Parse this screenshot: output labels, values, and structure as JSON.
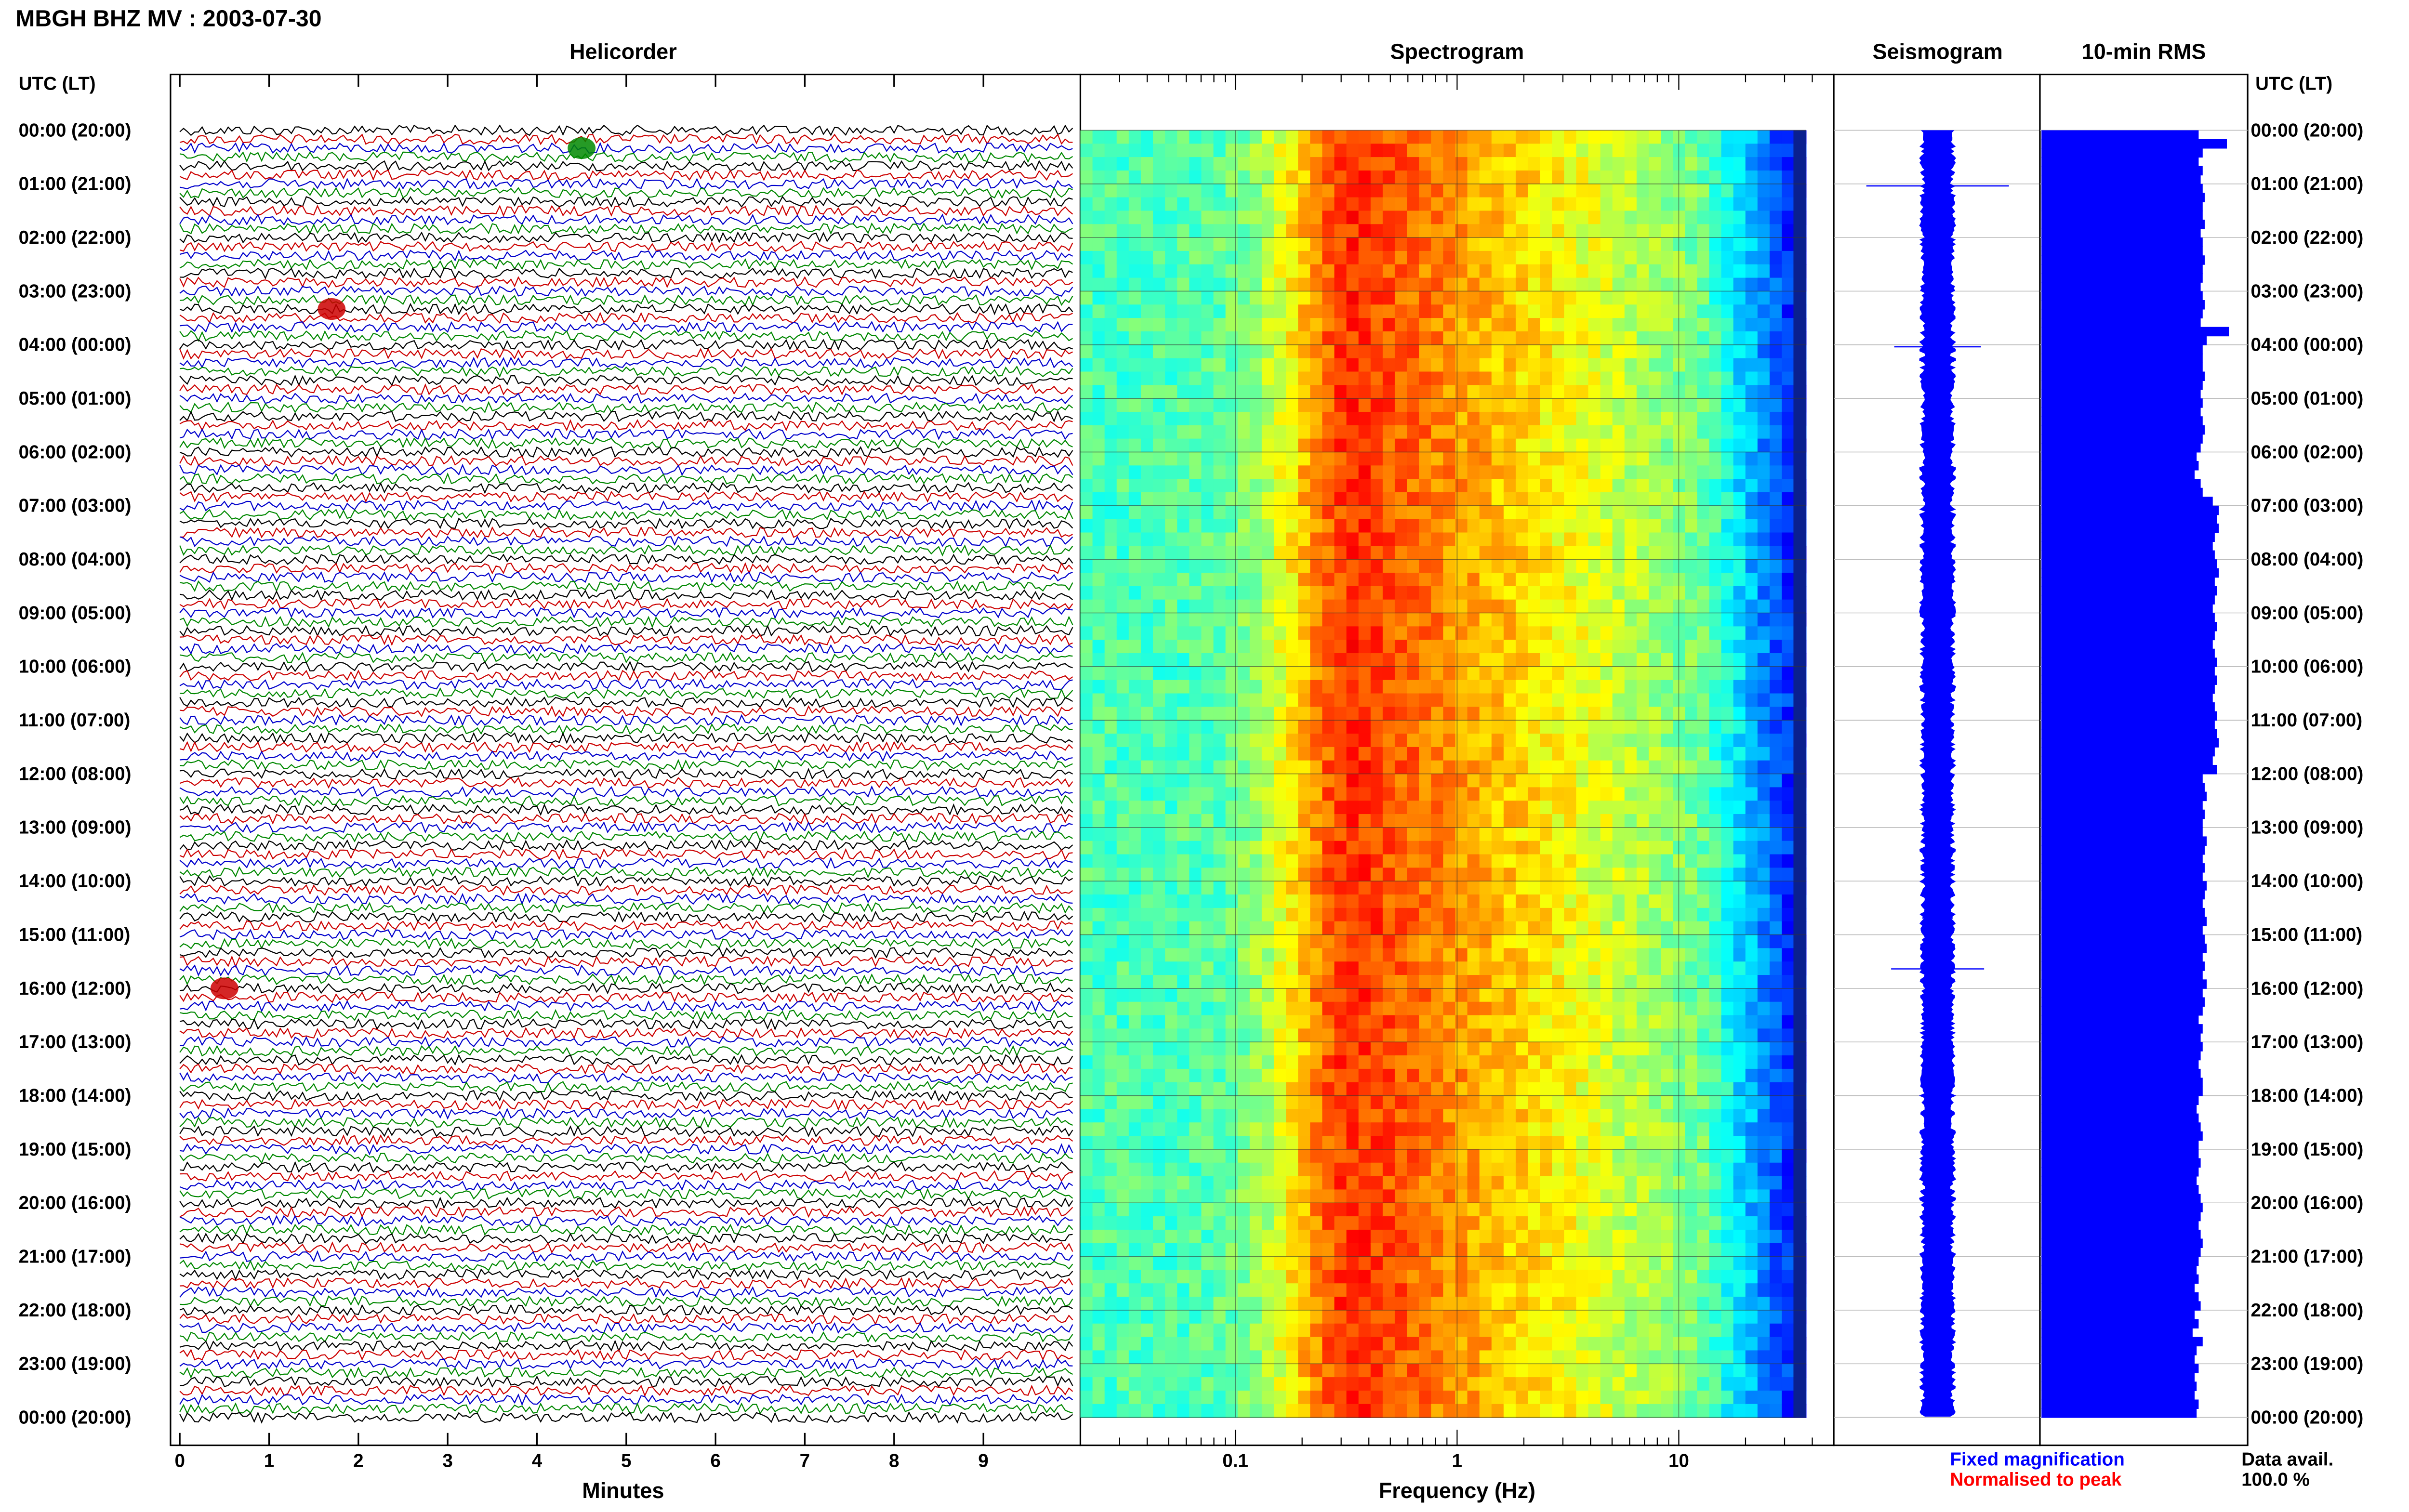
{
  "header": {
    "title": "MBGH BHZ MV : 2003-07-30",
    "utc_label_left": "UTC (LT)",
    "utc_label_right": "UTC (LT)"
  },
  "panels": {
    "helicorder": "Helicorder",
    "spectrogram": "Spectrogram",
    "seismogram": "Seismogram",
    "rms": "10-min RMS"
  },
  "time_labels": [
    "00:00 (20:00)",
    "01:00 (21:00)",
    "02:00 (22:00)",
    "03:00 (23:00)",
    "04:00 (00:00)",
    "05:00 (01:00)",
    "06:00 (02:00)",
    "07:00 (03:00)",
    "08:00 (04:00)",
    "09:00 (05:00)",
    "10:00 (06:00)",
    "11:00 (07:00)",
    "12:00 (08:00)",
    "13:00 (09:00)",
    "14:00 (10:00)",
    "15:00 (11:00)",
    "16:00 (12:00)",
    "17:00 (13:00)",
    "18:00 (14:00)",
    "19:00 (15:00)",
    "20:00 (16:00)",
    "21:00 (17:00)",
    "22:00 (18:00)",
    "23:00 (19:00)",
    "00:00 (20:00)"
  ],
  "footer": {
    "helicorder_xlabel": "Minutes",
    "spectrogram_xlabel": "Frequency (Hz)",
    "legend_fixed": "Fixed magnification",
    "legend_normalised": "Normalised to peak",
    "data_avail_label": "Data avail.",
    "data_avail_value": "100.0 %"
  },
  "colors": {
    "trace_cycle": [
      "#000000",
      "#cc0000",
      "#0000cc",
      "#008800"
    ],
    "rms_bar": "#0000ff",
    "seismogram": "#0000ff",
    "legend_fixed": "#0000ff",
    "legend_normalised": "#ff0000"
  },
  "chart_data": [
    {
      "type": "line",
      "name": "helicorder",
      "title": "Helicorder",
      "xlabel": "Minutes",
      "x_ticks": [
        "0",
        "1",
        "2",
        "3",
        "4",
        "5",
        "6",
        "7",
        "8",
        "9"
      ],
      "xlim": [
        0,
        10
      ],
      "rows_per_hour": 6,
      "hours": 24,
      "events": [
        {
          "hour_offset": 0.4,
          "minute": 4.5,
          "color": "#008800"
        },
        {
          "hour_offset": 3.4,
          "minute": 1.7,
          "color": "#cc0000"
        },
        {
          "hour_offset": 16.0,
          "minute": 0.5,
          "color": "#cc0000"
        }
      ]
    },
    {
      "type": "heatmap",
      "name": "spectrogram",
      "title": "Spectrogram",
      "xlabel": "Frequency (Hz)",
      "x_scale": "log",
      "xlim": [
        0.02,
        50
      ],
      "x_ticks": [
        "0.1",
        "1",
        "10"
      ],
      "peak_frequency_hz": 0.35,
      "note_level": "energy highest 0.25-0.5 Hz, decreasing above 10 Hz"
    },
    {
      "type": "line",
      "name": "seismogram",
      "title": "Seismogram"
    },
    {
      "type": "bar",
      "name": "rms",
      "title": "10-min RMS",
      "bins_per_hour": 6,
      "values_relative": [
        0.78,
        0.92,
        0.8,
        0.78,
        0.8,
        0.79,
        0.8,
        0.81,
        0.8,
        0.8,
        0.81,
        0.79,
        0.8,
        0.8,
        0.81,
        0.8,
        0.8,
        0.79,
        0.8,
        0.81,
        0.8,
        0.79,
        0.93,
        0.82,
        0.8,
        0.8,
        0.8,
        0.81,
        0.8,
        0.79,
        0.8,
        0.79,
        0.8,
        0.81,
        0.8,
        0.79,
        0.77,
        0.78,
        0.76,
        0.79,
        0.8,
        0.85,
        0.88,
        0.87,
        0.88,
        0.86,
        0.85,
        0.86,
        0.87,
        0.88,
        0.86,
        0.87,
        0.86,
        0.85,
        0.86,
        0.87,
        0.86,
        0.85,
        0.86,
        0.87,
        0.86,
        0.87,
        0.86,
        0.85,
        0.86,
        0.87,
        0.86,
        0.87,
        0.88,
        0.86,
        0.85,
        0.87,
        0.8,
        0.81,
        0.82,
        0.8,
        0.81,
        0.8,
        0.8,
        0.82,
        0.81,
        0.8,
        0.81,
        0.8,
        0.82,
        0.81,
        0.8,
        0.81,
        0.82,
        0.8,
        0.81,
        0.82,
        0.8,
        0.81,
        0.8,
        0.82,
        0.8,
        0.81,
        0.8,
        0.78,
        0.8,
        0.79,
        0.8,
        0.79,
        0.78,
        0.79,
        0.8,
        0.8,
        0.78,
        0.77,
        0.78,
        0.79,
        0.8,
        0.78,
        0.78,
        0.79,
        0.78,
        0.77,
        0.78,
        0.79,
        0.8,
        0.79,
        0.78,
        0.79,
        0.8,
        0.79,
        0.78,
        0.77,
        0.78,
        0.76,
        0.78,
        0.79,
        0.76,
        0.78,
        0.75,
        0.8,
        0.77,
        0.76,
        0.78,
        0.76,
        0.77,
        0.76,
        0.78,
        0.77
      ]
    }
  ]
}
